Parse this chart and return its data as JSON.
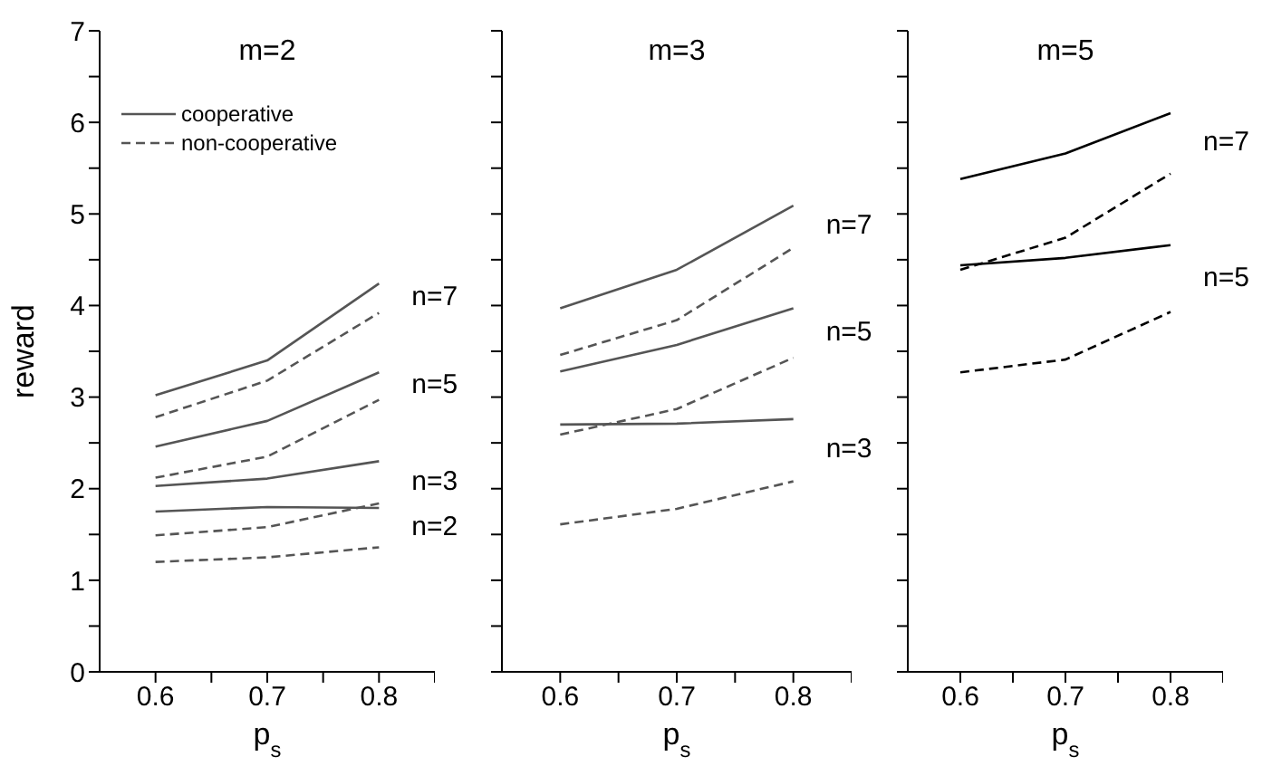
{
  "chart_data": [
    {
      "type": "line",
      "title": "m=2",
      "xlabel": "p$_{s}$",
      "ylabel": "reward",
      "x": [
        0.6,
        0.7,
        0.8
      ],
      "xlim": [
        0.55,
        0.85
      ],
      "xticks": [
        0.6,
        {
          "value": 0.65,
          "label": null
        },
        0.7,
        {
          "value": 0.75,
          "label": null
        },
        0.8,
        {
          "value": 0.85,
          "label": null
        }
      ],
      "ylim": [
        0,
        7
      ],
      "yticks": [
        0,
        {
          "value": 0.5,
          "label": null
        },
        1,
        {
          "value": 1.5,
          "label": null
        },
        2,
        {
          "value": 2.5,
          "label": null
        },
        3,
        {
          "value": 3.5,
          "label": null
        },
        4,
        {
          "value": 4.5,
          "label": null
        },
        5,
        {
          "value": 5.5,
          "label": null
        },
        6,
        {
          "value": 6.5,
          "label": null
        },
        7
      ],
      "legend": "top left",
      "marker": "none",
      "grid": false,
      "series": [
        {
          "name": "cooperative",
          "color": "#555555",
          "line_style": "solid",
          "values": [
            3.02,
            3.4,
            4.24
          ]
        },
        {
          "name": "non-cooperative",
          "color": "#555555",
          "line_style": "dashed",
          "values": [
            2.78,
            3.18,
            3.92
          ]
        },
        {
          "color": "#555555",
          "line_style": "solid",
          "values": [
            2.46,
            2.74,
            3.27
          ]
        },
        {
          "color": "#555555",
          "line_style": "dashed",
          "values": [
            2.12,
            2.35,
            2.97
          ]
        },
        {
          "color": "#555555",
          "line_style": "solid",
          "values": [
            2.03,
            2.11,
            2.3
          ]
        },
        {
          "color": "#555555",
          "line_style": "dashed",
          "values": [
            1.49,
            1.58,
            1.84
          ]
        },
        {
          "color": "#555555",
          "line_style": "solid",
          "values": [
            1.75,
            1.8,
            1.79
          ]
        },
        {
          "color": "#555555",
          "line_style": "dashed",
          "values": [
            1.2,
            1.25,
            1.36
          ]
        }
      ],
      "annotations": [
        "n=7",
        "n=5",
        "n=3",
        "n=2"
      ]
    },
    {
      "type": "line",
      "title": "m=3",
      "xlabel": "p$_{s}$",
      "x": [
        0.6,
        0.7,
        0.8
      ],
      "xlim": [
        0.55,
        0.85
      ],
      "xticks": [
        0.6,
        {
          "value": 0.65,
          "label": null
        },
        0.7,
        {
          "value": 0.75,
          "label": null
        },
        0.8,
        {
          "value": 0.85,
          "label": null
        }
      ],
      "ylim": [
        0,
        7
      ],
      "yticks": [
        {
          "value": 0,
          "label": null
        },
        {
          "value": 0.5,
          "label": null
        },
        {
          "value": 1,
          "label": null
        },
        {
          "value": 1.5,
          "label": null
        },
        {
          "value": 2,
          "label": null
        },
        {
          "value": 2.5,
          "label": null
        },
        {
          "value": 3,
          "label": null
        },
        {
          "value": 3.5,
          "label": null
        },
        {
          "value": 4,
          "label": null
        },
        {
          "value": 4.5,
          "label": null
        },
        {
          "value": 5,
          "label": null
        },
        {
          "value": 5.5,
          "label": null
        },
        {
          "value": 6,
          "label": null
        },
        {
          "value": 6.5,
          "label": null
        },
        {
          "value": 7,
          "label": null
        }
      ],
      "tick_labels": "x",
      "marker": "none",
      "grid": false,
      "series": [
        {
          "color": "#555555",
          "line_style": "solid",
          "values": [
            3.97,
            4.39,
            5.09
          ]
        },
        {
          "color": "#555555",
          "line_style": "dashed",
          "values": [
            3.46,
            3.84,
            4.63
          ]
        },
        {
          "color": "#555555",
          "line_style": "solid",
          "values": [
            3.28,
            3.57,
            3.97
          ]
        },
        {
          "color": "#555555",
          "line_style": "dashed",
          "values": [
            2.59,
            2.87,
            3.43
          ]
        },
        {
          "color": "#555555",
          "line_style": "solid",
          "values": [
            2.7,
            2.71,
            2.76
          ]
        },
        {
          "color": "#555555",
          "line_style": "dashed",
          "values": [
            1.61,
            1.78,
            2.08
          ]
        }
      ],
      "annotations": [
        "n=7",
        "n=5",
        "n=3"
      ]
    },
    {
      "type": "line",
      "title": "m=5",
      "xlabel": "p$_{s}$",
      "x": [
        0.6,
        0.7,
        0.8
      ],
      "xlim": [
        0.55,
        0.85
      ],
      "xticks": [
        0.6,
        {
          "value": 0.65,
          "label": null
        },
        0.7,
        {
          "value": 0.75,
          "label": null
        },
        0.8,
        {
          "value": 0.85,
          "label": null
        }
      ],
      "ylim": [
        0,
        7
      ],
      "yticks": [
        {
          "value": 0,
          "label": null
        },
        {
          "value": 0.5,
          "label": null
        },
        {
          "value": 1,
          "label": null
        },
        {
          "value": 1.5,
          "label": null
        },
        {
          "value": 2,
          "label": null
        },
        {
          "value": 2.5,
          "label": null
        },
        {
          "value": 3,
          "label": null
        },
        {
          "value": 3.5,
          "label": null
        },
        {
          "value": 4,
          "label": null
        },
        {
          "value": 4.5,
          "label": null
        },
        {
          "value": 5,
          "label": null
        },
        {
          "value": 5.5,
          "label": null
        },
        {
          "value": 6,
          "label": null
        },
        {
          "value": 6.5,
          "label": null
        },
        {
          "value": 7,
          "label": null
        }
      ],
      "tick_labels": "x",
      "marker": "none",
      "grid": false,
      "series": [
        {
          "color": "#000000",
          "line_style": "solid",
          "values": [
            5.38,
            5.66,
            6.1
          ]
        },
        {
          "color": "#000000",
          "line_style": "dashed",
          "values": [
            4.39,
            4.74,
            5.44
          ]
        },
        {
          "color": "#000000",
          "line_style": "solid",
          "values": [
            4.44,
            4.52,
            4.66
          ]
        },
        {
          "color": "#000000",
          "line_style": "dashed",
          "values": [
            3.27,
            3.41,
            3.93
          ]
        }
      ],
      "annotations": [
        "n=7",
        "n=5"
      ]
    }
  ]
}
